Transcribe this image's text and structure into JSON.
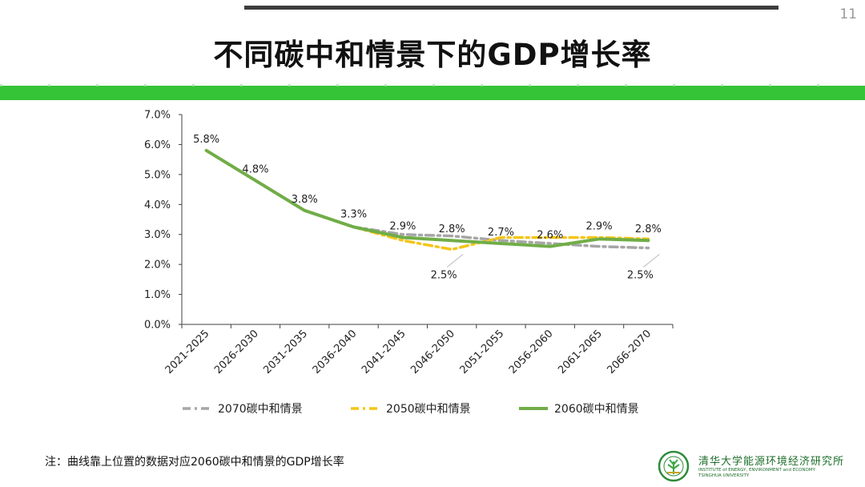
{
  "page_number": "11",
  "title": "不同碳中和情景下的GDP增长率",
  "footnote": "注：曲线靠上位置的数据对应2060碳中和情景的GDP增长率",
  "institution": {
    "name_cn": "清华大学能源环境经济研究所",
    "name_en_1": "INSTITUTE of ENERGY, ENVIRONMENT and ECONOMY",
    "name_en_2": "TSINGHUA UNIVERSITY",
    "logo_icon": "tsinghua-3e-logo-icon"
  },
  "colors": {
    "accent_green": "#35c337",
    "series_2070": "#a6a6a6",
    "series_2050": "#f5c518",
    "series_2060": "#70ad47"
  },
  "chart_data": {
    "type": "line",
    "categories": [
      "2021-2025",
      "2026-2030",
      "2031-2035",
      "2036-2040",
      "2041-2045",
      "2046-2050",
      "2051-2055",
      "2056-2060",
      "2061-2065",
      "2066-2070"
    ],
    "ylim": [
      0,
      7
    ],
    "yticks": [
      "0.0%",
      "1.0%",
      "2.0%",
      "3.0%",
      "4.0%",
      "5.0%",
      "6.0%",
      "7.0%"
    ],
    "grid": false,
    "legend_position": "bottom",
    "series": [
      {
        "name": "2070碳中和情景",
        "style": "dash-dot",
        "values": [
          5.8,
          4.8,
          3.8,
          3.25,
          3.0,
          2.95,
          2.8,
          2.7,
          2.6,
          2.55
        ]
      },
      {
        "name": "2050碳中和情景",
        "style": "dash-dot",
        "values": [
          5.8,
          4.8,
          3.8,
          3.25,
          2.8,
          2.5,
          2.9,
          2.9,
          2.9,
          2.85
        ]
      },
      {
        "name": "2060碳中和情景",
        "style": "solid",
        "values": [
          5.8,
          4.8,
          3.8,
          3.25,
          2.9,
          2.8,
          2.7,
          2.6,
          2.85,
          2.8
        ]
      }
    ],
    "data_labels": [
      {
        "category": "2021-2025",
        "text": "5.8%",
        "value": 5.8,
        "placement": "above"
      },
      {
        "category": "2026-2030",
        "text": "4.8%",
        "value": 4.8,
        "placement": "above"
      },
      {
        "category": "2031-2035",
        "text": "3.8%",
        "value": 3.8,
        "placement": "above"
      },
      {
        "category": "2036-2040",
        "text": "3.3%",
        "value": 3.3,
        "placement": "above"
      },
      {
        "category": "2041-2045",
        "text": "2.9%",
        "value": 2.9,
        "placement": "above"
      },
      {
        "category": "2046-2050",
        "text": "2.8%",
        "value": 2.8,
        "placement": "above"
      },
      {
        "category": "2046-2050",
        "text": "2.5%",
        "value": 2.5,
        "placement": "below"
      },
      {
        "category": "2051-2055",
        "text": "2.7%",
        "value": 2.7,
        "placement": "above"
      },
      {
        "category": "2056-2060",
        "text": "2.6%",
        "value": 2.6,
        "placement": "above"
      },
      {
        "category": "2061-2065",
        "text": "2.9%",
        "value": 2.9,
        "placement": "above"
      },
      {
        "category": "2066-2070",
        "text": "2.8%",
        "value": 2.8,
        "placement": "above"
      },
      {
        "category": "2066-2070",
        "text": "2.5%",
        "value": 2.5,
        "placement": "below"
      }
    ]
  }
}
